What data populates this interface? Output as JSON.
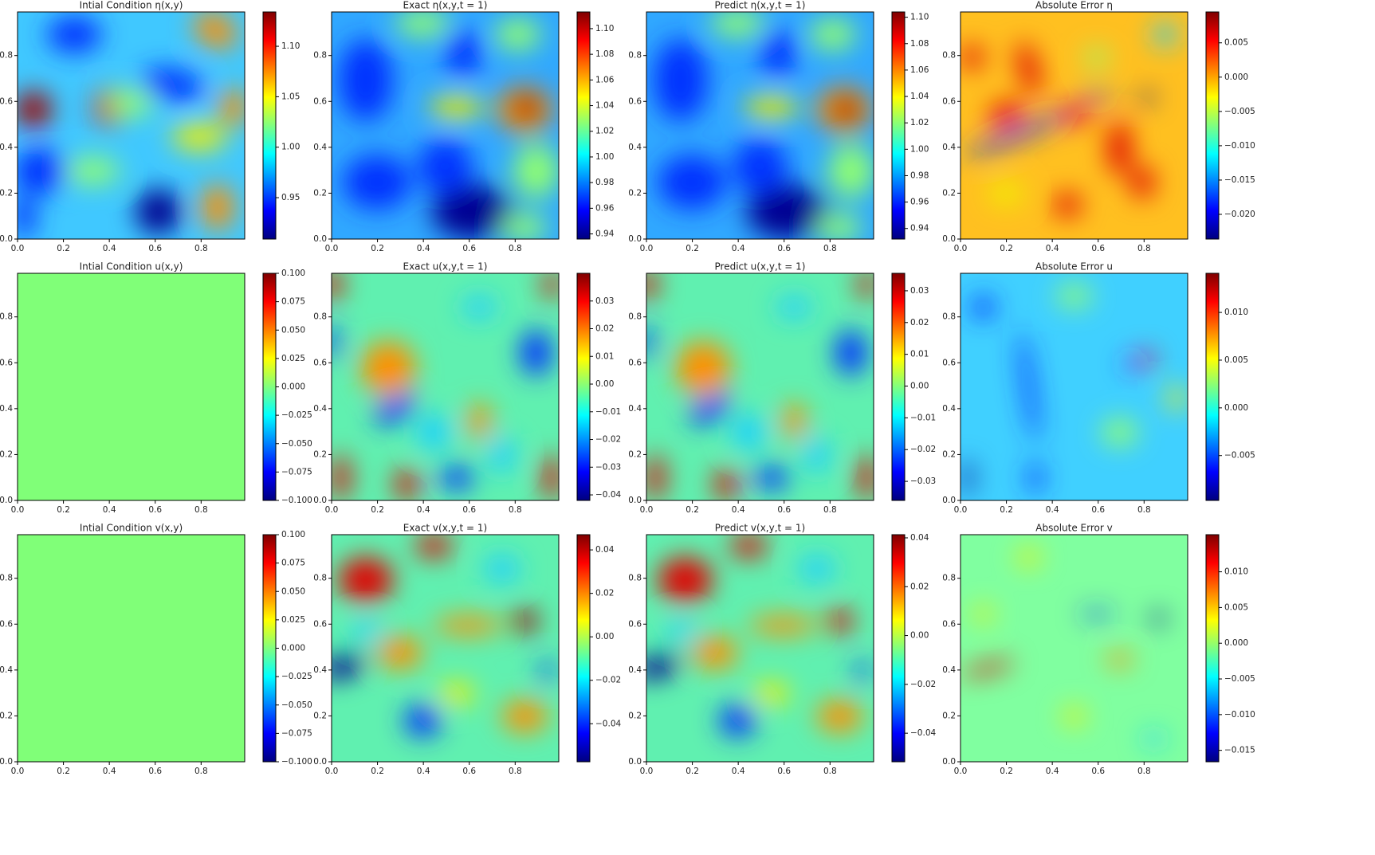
{
  "chart_data": [
    {
      "type": "heatmap",
      "title": "Intial Condition η(x,y)",
      "colormap": "jet",
      "xlim": [
        0,
        0.99
      ],
      "ylim": [
        0,
        0.99
      ],
      "xticks": [
        {
          "value": 0,
          "label": "0.0"
        },
        {
          "value": 0.2,
          "label": "0.2"
        },
        {
          "value": 0.4,
          "label": "0.4"
        },
        {
          "value": 0.6,
          "label": "0.6"
        },
        {
          "value": 0.8,
          "label": "0.8"
        }
      ],
      "yticks": [
        {
          "value": 0,
          "label": "0.0"
        },
        {
          "value": 0.2,
          "label": "0.2"
        },
        {
          "value": 0.4,
          "label": "0.4"
        },
        {
          "value": 0.6,
          "label": "0.6"
        },
        {
          "value": 0.8,
          "label": "0.8"
        }
      ],
      "clim": [
        0.909,
        1.134
      ],
      "cticks": [
        0.95,
        {
          "value": 1,
          "label": "1.00"
        },
        1.05,
        {
          "value": 1.1,
          "label": "1.10"
        }
      ]
    },
    {
      "type": "heatmap",
      "title": "Exact η(x,y,t = 1)",
      "colormap": "jet",
      "xlim": [
        0,
        0.99
      ],
      "ylim": [
        0,
        0.99
      ],
      "xticks": [
        {
          "value": 0,
          "label": "0.0"
        },
        {
          "value": 0.2,
          "label": "0.2"
        },
        {
          "value": 0.4,
          "label": "0.4"
        },
        {
          "value": 0.6,
          "label": "0.6"
        },
        {
          "value": 0.8,
          "label": "0.8"
        }
      ],
      "yticks": [
        {
          "value": 0,
          "label": "0.0"
        },
        {
          "value": 0.2,
          "label": "0.2"
        },
        {
          "value": 0.4,
          "label": "0.4"
        },
        {
          "value": 0.6,
          "label": "0.6"
        },
        {
          "value": 0.8,
          "label": "0.8"
        }
      ],
      "clim": [
        0.936,
        1.113
      ],
      "cticks": [
        0.94,
        0.96,
        0.98,
        {
          "value": 1,
          "label": "1.00"
        },
        1.02,
        1.04,
        1.06,
        1.08,
        {
          "value": 1.1,
          "label": "1.10"
        }
      ]
    },
    {
      "type": "heatmap",
      "title": "Predict η(x,y,t = 1)",
      "colormap": "jet",
      "xlim": [
        0,
        0.99
      ],
      "ylim": [
        0,
        0.99
      ],
      "xticks": [
        {
          "value": 0,
          "label": "0.0"
        },
        {
          "value": 0.2,
          "label": "0.2"
        },
        {
          "value": 0.4,
          "label": "0.4"
        },
        {
          "value": 0.6,
          "label": "0.6"
        },
        {
          "value": 0.8,
          "label": "0.8"
        }
      ],
      "yticks": [
        {
          "value": 0,
          "label": "0.0"
        },
        {
          "value": 0.2,
          "label": "0.2"
        },
        {
          "value": 0.4,
          "label": "0.4"
        },
        {
          "value": 0.6,
          "label": "0.6"
        },
        {
          "value": 0.8,
          "label": "0.8"
        }
      ],
      "clim": [
        0.932,
        1.104
      ],
      "cticks": [
        0.94,
        0.96,
        0.98,
        {
          "value": 1,
          "label": "1.00"
        },
        1.02,
        1.04,
        1.06,
        1.08,
        {
          "value": 1.1,
          "label": "1.10"
        }
      ]
    },
    {
      "type": "heatmap",
      "title": "Absolute Error η",
      "colormap": "jet",
      "xlim": [
        0,
        0.99
      ],
      "ylim": [
        0,
        0.99
      ],
      "xticks": [
        {
          "value": 0,
          "label": "0.0"
        },
        {
          "value": 0.2,
          "label": "0.2"
        },
        {
          "value": 0.4,
          "label": "0.4"
        },
        {
          "value": 0.6,
          "label": "0.6"
        },
        {
          "value": 0.8,
          "label": "0.8"
        }
      ],
      "yticks": [
        {
          "value": 0,
          "label": "0.0"
        },
        {
          "value": 0.2,
          "label": "0.2"
        },
        {
          "value": 0.4,
          "label": "0.4"
        },
        {
          "value": 0.6,
          "label": "0.6"
        },
        {
          "value": 0.8,
          "label": "0.8"
        }
      ],
      "clim": [
        -0.0236,
        0.0095
      ],
      "cticks": [
        {
          "value": -0.02,
          "label": "−0.020"
        },
        {
          "value": -0.015,
          "label": "−0.015"
        },
        {
          "value": -0.01,
          "label": "−0.010"
        },
        {
          "value": -0.005,
          "label": "−0.005"
        },
        {
          "value": 0,
          "label": "0.000"
        },
        0.005
      ]
    },
    {
      "type": "heatmap",
      "title": "Intial Condition u(x,y)",
      "colormap": "jet",
      "xlim": [
        0,
        0.99
      ],
      "ylim": [
        0,
        0.99
      ],
      "xticks": [
        {
          "value": 0,
          "label": "0.0"
        },
        {
          "value": 0.2,
          "label": "0.2"
        },
        {
          "value": 0.4,
          "label": "0.4"
        },
        {
          "value": 0.6,
          "label": "0.6"
        },
        {
          "value": 0.8,
          "label": "0.8"
        }
      ],
      "yticks": [
        {
          "value": 0,
          "label": "0.0"
        },
        {
          "value": 0.2,
          "label": "0.2"
        },
        {
          "value": 0.4,
          "label": "0.4"
        },
        {
          "value": 0.6,
          "label": "0.6"
        },
        {
          "value": 0.8,
          "label": "0.8"
        }
      ],
      "clim": [
        -0.1,
        0.1
      ],
      "cticks": [
        {
          "value": -0.1,
          "label": "−0.100"
        },
        {
          "value": -0.075,
          "label": "−0.075"
        },
        {
          "value": -0.05,
          "label": "−0.050"
        },
        {
          "value": -0.025,
          "label": "−0.025"
        },
        {
          "value": 0,
          "label": "0.000"
        },
        0.025,
        {
          "value": 0.05,
          "label": "0.050"
        },
        0.075,
        {
          "value": 0.1,
          "label": "0.100"
        }
      ]
    },
    {
      "type": "heatmap",
      "title": "Exact u(x,y,t = 1)",
      "colormap": "jet",
      "xlim": [
        0,
        0.99
      ],
      "ylim": [
        0,
        0.99
      ],
      "xticks": [
        {
          "value": 0,
          "label": "0.0"
        },
        {
          "value": 0.2,
          "label": "0.2"
        },
        {
          "value": 0.4,
          "label": "0.4"
        },
        {
          "value": 0.6,
          "label": "0.6"
        },
        {
          "value": 0.8,
          "label": "0.8"
        }
      ],
      "yticks": [
        {
          "value": 0,
          "label": "0.0"
        },
        {
          "value": 0.2,
          "label": "0.2"
        },
        {
          "value": 0.4,
          "label": "0.4"
        },
        {
          "value": 0.6,
          "label": "0.6"
        },
        {
          "value": 0.8,
          "label": "0.8"
        }
      ],
      "clim": [
        -0.042,
        0.04
      ],
      "cticks": [
        {
          "value": -0.04,
          "label": "−0.04"
        },
        {
          "value": -0.03,
          "label": "−0.03"
        },
        {
          "value": -0.02,
          "label": "−0.02"
        },
        {
          "value": -0.01,
          "label": "−0.01"
        },
        {
          "value": 0,
          "label": "0.00"
        },
        0.01,
        0.02,
        0.03
      ]
    },
    {
      "type": "heatmap",
      "title": "Predict u(x,y,t = 1)",
      "colormap": "jet",
      "xlim": [
        0,
        0.99
      ],
      "ylim": [
        0,
        0.99
      ],
      "xticks": [
        {
          "value": 0,
          "label": "0.0"
        },
        {
          "value": 0.2,
          "label": "0.2"
        },
        {
          "value": 0.4,
          "label": "0.4"
        },
        {
          "value": 0.6,
          "label": "0.6"
        },
        {
          "value": 0.8,
          "label": "0.8"
        }
      ],
      "yticks": [
        {
          "value": 0,
          "label": "0.0"
        },
        {
          "value": 0.2,
          "label": "0.2"
        },
        {
          "value": 0.4,
          "label": "0.4"
        },
        {
          "value": 0.6,
          "label": "0.6"
        },
        {
          "value": 0.8,
          "label": "0.8"
        }
      ],
      "clim": [
        -0.036,
        0.0355
      ],
      "cticks": [
        {
          "value": -0.03,
          "label": "−0.03"
        },
        {
          "value": -0.02,
          "label": "−0.02"
        },
        {
          "value": -0.01,
          "label": "−0.01"
        },
        {
          "value": 0,
          "label": "0.00"
        },
        0.01,
        0.02,
        0.03
      ]
    },
    {
      "type": "heatmap",
      "title": "Absolute Error u",
      "colormap": "jet",
      "xlim": [
        0,
        0.99
      ],
      "ylim": [
        0,
        0.99
      ],
      "xticks": [
        {
          "value": 0,
          "label": "0.0"
        },
        {
          "value": 0.2,
          "label": "0.2"
        },
        {
          "value": 0.4,
          "label": "0.4"
        },
        {
          "value": 0.6,
          "label": "0.6"
        },
        {
          "value": 0.8,
          "label": "0.8"
        }
      ],
      "yticks": [
        {
          "value": 0,
          "label": "0.0"
        },
        {
          "value": 0.2,
          "label": "0.2"
        },
        {
          "value": 0.4,
          "label": "0.4"
        },
        {
          "value": 0.6,
          "label": "0.6"
        },
        {
          "value": 0.8,
          "label": "0.8"
        }
      ],
      "clim": [
        -0.0097,
        0.0141
      ],
      "cticks": [
        {
          "value": -0.005,
          "label": "−0.005"
        },
        {
          "value": 0,
          "label": "0.000"
        },
        0.005,
        {
          "value": 0.01,
          "label": "0.010"
        }
      ]
    },
    {
      "type": "heatmap",
      "title": "Intial Condition v(x,y)",
      "colormap": "jet",
      "xlim": [
        0,
        0.99
      ],
      "ylim": [
        0,
        0.99
      ],
      "xticks": [
        {
          "value": 0,
          "label": "0.0"
        },
        {
          "value": 0.2,
          "label": "0.2"
        },
        {
          "value": 0.4,
          "label": "0.4"
        },
        {
          "value": 0.6,
          "label": "0.6"
        },
        {
          "value": 0.8,
          "label": "0.8"
        }
      ],
      "yticks": [
        {
          "value": 0,
          "label": "0.0"
        },
        {
          "value": 0.2,
          "label": "0.2"
        },
        {
          "value": 0.4,
          "label": "0.4"
        },
        {
          "value": 0.6,
          "label": "0.6"
        },
        {
          "value": 0.8,
          "label": "0.8"
        }
      ],
      "clim": [
        -0.1,
        0.1
      ],
      "cticks": [
        {
          "value": -0.1,
          "label": "−0.100"
        },
        {
          "value": -0.075,
          "label": "−0.075"
        },
        {
          "value": -0.05,
          "label": "−0.050"
        },
        {
          "value": -0.025,
          "label": "−0.025"
        },
        {
          "value": 0,
          "label": "0.000"
        },
        0.025,
        {
          "value": 0.05,
          "label": "0.050"
        },
        0.075,
        {
          "value": 0.1,
          "label": "0.100"
        }
      ]
    },
    {
      "type": "heatmap",
      "title": "Exact v(x,y,t = 1)",
      "colormap": "jet",
      "xlim": [
        0,
        0.99
      ],
      "ylim": [
        0,
        0.99
      ],
      "xticks": [
        {
          "value": 0,
          "label": "0.0"
        },
        {
          "value": 0.2,
          "label": "0.2"
        },
        {
          "value": 0.4,
          "label": "0.4"
        },
        {
          "value": 0.6,
          "label": "0.6"
        },
        {
          "value": 0.8,
          "label": "0.8"
        }
      ],
      "yticks": [
        {
          "value": 0,
          "label": "0.0"
        },
        {
          "value": 0.2,
          "label": "0.2"
        },
        {
          "value": 0.4,
          "label": "0.4"
        },
        {
          "value": 0.6,
          "label": "0.6"
        },
        {
          "value": 0.8,
          "label": "0.8"
        }
      ],
      "clim": [
        -0.0575,
        0.047
      ],
      "cticks": [
        {
          "value": -0.04,
          "label": "−0.04"
        },
        {
          "value": -0.02,
          "label": "−0.02"
        },
        {
          "value": 0,
          "label": "0.00"
        },
        0.02,
        0.04
      ]
    },
    {
      "type": "heatmap",
      "title": "Predict v(x,y,t = 1)",
      "colormap": "jet",
      "xlim": [
        0,
        0.99
      ],
      "ylim": [
        0,
        0.99
      ],
      "xticks": [
        {
          "value": 0,
          "label": "0.0"
        },
        {
          "value": 0.2,
          "label": "0.2"
        },
        {
          "value": 0.4,
          "label": "0.4"
        },
        {
          "value": 0.6,
          "label": "0.6"
        },
        {
          "value": 0.8,
          "label": "0.8"
        }
      ],
      "yticks": [
        {
          "value": 0,
          "label": "0.0"
        },
        {
          "value": 0.2,
          "label": "0.2"
        },
        {
          "value": 0.4,
          "label": "0.4"
        },
        {
          "value": 0.6,
          "label": "0.6"
        },
        {
          "value": 0.8,
          "label": "0.8"
        }
      ],
      "clim": [
        -0.0517,
        0.0413
      ],
      "cticks": [
        {
          "value": -0.04,
          "label": "−0.04"
        },
        {
          "value": -0.02,
          "label": "−0.02"
        },
        {
          "value": 0,
          "label": "0.00"
        },
        0.02,
        0.04
      ]
    },
    {
      "type": "heatmap",
      "title": "Absolute Error v",
      "colormap": "jet",
      "xlim": [
        0,
        0.99
      ],
      "ylim": [
        0,
        0.99
      ],
      "xticks": [
        {
          "value": 0,
          "label": "0.0"
        },
        {
          "value": 0.2,
          "label": "0.2"
        },
        {
          "value": 0.4,
          "label": "0.4"
        },
        {
          "value": 0.6,
          "label": "0.6"
        },
        {
          "value": 0.8,
          "label": "0.8"
        }
      ],
      "yticks": [
        {
          "value": 0,
          "label": "0.0"
        },
        {
          "value": 0.2,
          "label": "0.2"
        },
        {
          "value": 0.4,
          "label": "0.4"
        },
        {
          "value": 0.6,
          "label": "0.6"
        },
        {
          "value": 0.8,
          "label": "0.8"
        }
      ],
      "clim": [
        -0.0166,
        0.0152
      ],
      "cticks": [
        {
          "value": -0.015,
          "label": "−0.015"
        },
        {
          "value": -0.01,
          "label": "−0.010"
        },
        {
          "value": -0.005,
          "label": "−0.005"
        },
        {
          "value": 0,
          "label": "0.000"
        },
        0.005,
        {
          "value": 0.01,
          "label": "0.010"
        }
      ]
    }
  ]
}
